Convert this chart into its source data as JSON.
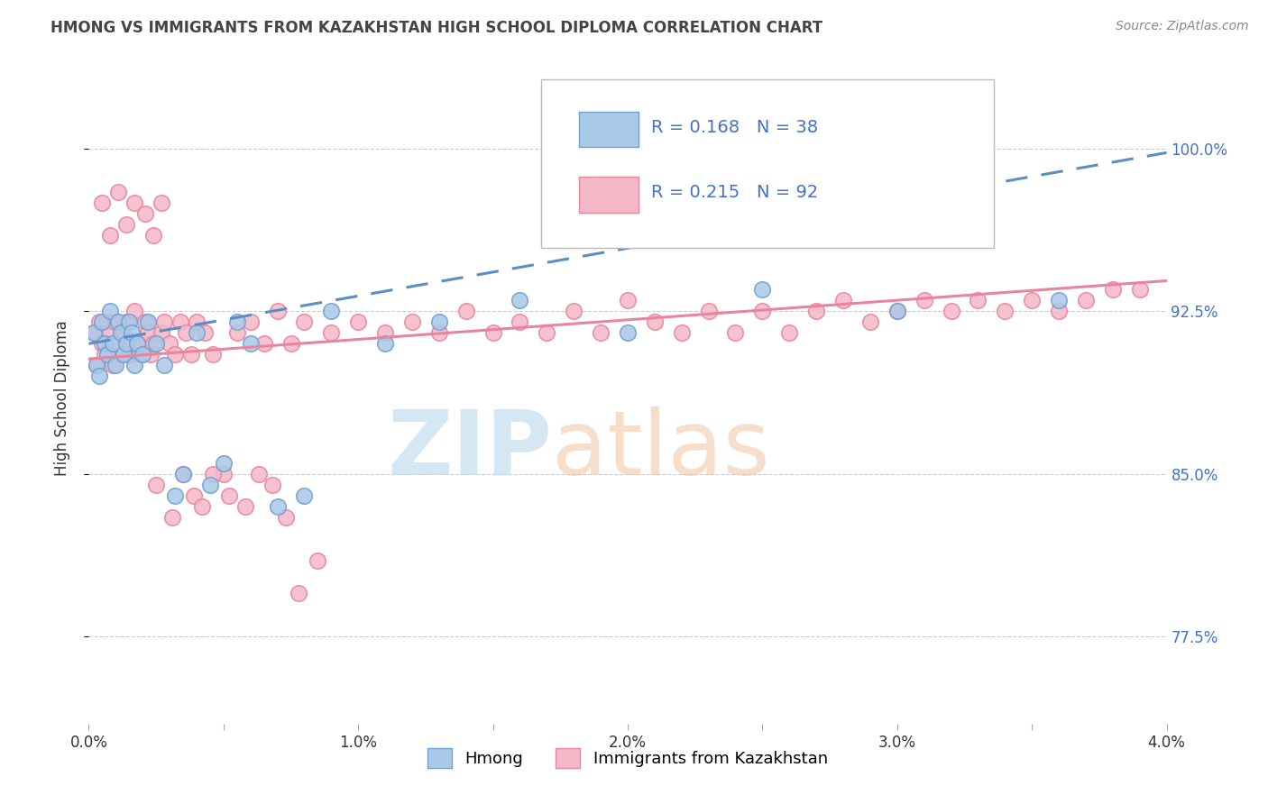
{
  "title": "HMONG VS IMMIGRANTS FROM KAZAKHSTAN HIGH SCHOOL DIPLOMA CORRELATION CHART",
  "source": "Source: ZipAtlas.com",
  "ylabel": "High School Diploma",
  "xmin": 0.0,
  "xmax": 4.0,
  "ymin": 73.5,
  "ymax": 103.5,
  "yticks": [
    77.5,
    85.0,
    92.5,
    100.0
  ],
  "ytick_labels": [
    "77.5%",
    "85.0%",
    "92.5%",
    "100.0%"
  ],
  "xticks": [
    0.0,
    0.5,
    1.0,
    1.5,
    2.0,
    2.5,
    3.0,
    3.5,
    4.0
  ],
  "xtick_labels": [
    "0.0%",
    "",
    "1.0%",
    "",
    "2.0%",
    "",
    "3.0%",
    "",
    "4.0%"
  ],
  "hmong_color": "#aac8e8",
  "hmong_edge_color": "#6fa0d0",
  "kazakhstan_color": "#f5b8c8",
  "kazakhstan_edge_color": "#e8849e",
  "trend_hmong_color": "#5b8ec4",
  "trend_kazakhstan_color": "#e8849e",
  "R_hmong": 0.168,
  "N_hmong": 38,
  "R_kazakhstan": 0.215,
  "N_kazakhstan": 92,
  "text_blue": "#4472c4",
  "hmong_x": [
    0.02,
    0.03,
    0.04,
    0.05,
    0.06,
    0.07,
    0.08,
    0.09,
    0.1,
    0.11,
    0.12,
    0.13,
    0.14,
    0.15,
    0.16,
    0.17,
    0.18,
    0.2,
    0.22,
    0.25,
    0.28,
    0.32,
    0.35,
    0.4,
    0.45,
    0.5,
    0.55,
    0.6,
    0.7,
    0.8,
    0.9,
    1.1,
    1.3,
    1.6,
    2.0,
    2.5,
    3.0,
    3.6
  ],
  "hmong_y": [
    91.5,
    90.0,
    89.5,
    92.0,
    91.0,
    90.5,
    92.5,
    91.0,
    90.0,
    92.0,
    91.5,
    90.5,
    91.0,
    92.0,
    91.5,
    90.0,
    91.0,
    90.5,
    92.0,
    91.0,
    90.0,
    84.0,
    85.0,
    91.5,
    84.5,
    85.5,
    92.0,
    91.0,
    83.5,
    84.0,
    92.5,
    91.0,
    92.0,
    93.0,
    91.5,
    93.5,
    92.5,
    93.0
  ],
  "kazakhstan_x": [
    0.02,
    0.03,
    0.04,
    0.05,
    0.06,
    0.07,
    0.08,
    0.09,
    0.1,
    0.11,
    0.12,
    0.13,
    0.14,
    0.15,
    0.16,
    0.17,
    0.18,
    0.19,
    0.2,
    0.21,
    0.22,
    0.23,
    0.24,
    0.25,
    0.27,
    0.28,
    0.3,
    0.32,
    0.34,
    0.36,
    0.38,
    0.4,
    0.43,
    0.46,
    0.5,
    0.55,
    0.6,
    0.65,
    0.7,
    0.75,
    0.8,
    0.9,
    1.0,
    1.1,
    1.2,
    1.3,
    1.4,
    1.5,
    1.6,
    1.7,
    1.8,
    1.9,
    2.0,
    2.1,
    2.2,
    2.3,
    2.4,
    2.5,
    2.6,
    2.7,
    2.8,
    2.9,
    3.0,
    3.1,
    3.2,
    3.3,
    3.4,
    3.5,
    3.6,
    3.7,
    3.8,
    3.9,
    0.05,
    0.08,
    0.11,
    0.14,
    0.17,
    0.21,
    0.24,
    0.27,
    0.31,
    0.35,
    0.39,
    0.42,
    0.46,
    0.52,
    0.58,
    0.63,
    0.68,
    0.73,
    0.78,
    0.85
  ],
  "kazakhstan_y": [
    91.5,
    90.0,
    92.0,
    91.0,
    90.5,
    92.0,
    91.5,
    90.0,
    92.0,
    91.0,
    90.5,
    91.5,
    92.0,
    90.5,
    91.0,
    92.5,
    91.0,
    90.5,
    91.0,
    92.0,
    91.5,
    90.5,
    91.0,
    84.5,
    91.5,
    92.0,
    91.0,
    90.5,
    92.0,
    91.5,
    90.5,
    92.0,
    91.5,
    90.5,
    85.0,
    91.5,
    92.0,
    91.0,
    92.5,
    91.0,
    92.0,
    91.5,
    92.0,
    91.5,
    92.0,
    91.5,
    92.5,
    91.5,
    92.0,
    91.5,
    92.5,
    91.5,
    93.0,
    92.0,
    91.5,
    92.5,
    91.5,
    92.5,
    91.5,
    92.5,
    93.0,
    92.0,
    92.5,
    93.0,
    92.5,
    93.0,
    92.5,
    93.0,
    92.5,
    93.0,
    93.5,
    93.5,
    97.5,
    96.0,
    98.0,
    96.5,
    97.5,
    97.0,
    96.0,
    97.5,
    83.0,
    85.0,
    84.0,
    83.5,
    85.0,
    84.0,
    83.5,
    85.0,
    84.5,
    83.0,
    79.5,
    81.0
  ]
}
